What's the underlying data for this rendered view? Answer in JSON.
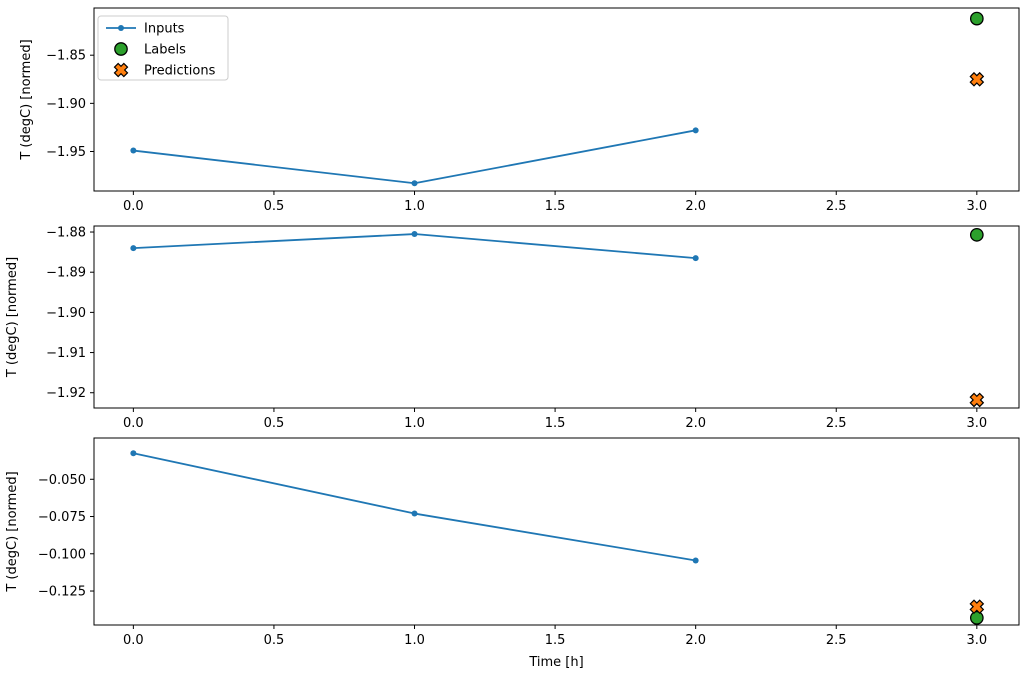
{
  "figure": {
    "background": "#ffffff",
    "xlabel": "Time [h]",
    "ylabel": "T (degC) [normed]"
  },
  "legend": {
    "border_color": "#cccccc",
    "background": "rgba(255,255,255,0.8)",
    "items": [
      {
        "label": "Inputs",
        "marker": "line-dot",
        "color": "#1f77b4"
      },
      {
        "label": "Labels",
        "marker": "circle",
        "color": "#2ca02c",
        "edge_color": "#000000"
      },
      {
        "label": "Predictions",
        "marker": "x-cross",
        "color": "#ff7f0e",
        "edge_color": "#000000"
      }
    ]
  },
  "chart_data": [
    {
      "type": "line",
      "ylabel": "T (degC) [normed]",
      "xlabel": "",
      "xlim": [
        -0.14,
        3.15
      ],
      "ylim": [
        -1.991,
        -1.801
      ],
      "grid": false,
      "legend_position": "upper-left",
      "xticks": [
        {
          "value": 0.0,
          "label": "0.0"
        },
        {
          "value": 0.5,
          "label": "0.5"
        },
        {
          "value": 1.0,
          "label": "1.0"
        },
        {
          "value": 1.5,
          "label": "1.5"
        },
        {
          "value": 2.0,
          "label": "2.0"
        },
        {
          "value": 2.5,
          "label": "2.5"
        },
        {
          "value": 3.0,
          "label": "3.0"
        }
      ],
      "yticks": [
        {
          "value": -1.85,
          "label": "−1.85"
        },
        {
          "value": -1.9,
          "label": "−1.90"
        },
        {
          "value": -1.95,
          "label": "−1.95"
        }
      ],
      "series": [
        {
          "name": "Inputs",
          "type": "line",
          "marker": "dot",
          "color": "#1f77b4",
          "x": [
            0,
            1,
            2
          ],
          "y": [
            -1.949,
            -1.983,
            -1.928
          ]
        },
        {
          "name": "Labels",
          "type": "scatter",
          "marker": "circle",
          "color": "#2ca02c",
          "edge_color": "#000000",
          "x": [
            3
          ],
          "y": [
            -1.812
          ]
        },
        {
          "name": "Predictions",
          "type": "scatter",
          "marker": "X",
          "color": "#ff7f0e",
          "edge_color": "#000000",
          "x": [
            3
          ],
          "y": [
            -1.875
          ]
        }
      ]
    },
    {
      "type": "line",
      "ylabel": "T (degC) [normed]",
      "xlabel": "",
      "xlim": [
        -0.14,
        3.15
      ],
      "ylim": [
        -1.9238,
        -1.8785
      ],
      "grid": false,
      "xticks": [
        {
          "value": 0.0,
          "label": "0.0"
        },
        {
          "value": 0.5,
          "label": "0.5"
        },
        {
          "value": 1.0,
          "label": "1.0"
        },
        {
          "value": 1.5,
          "label": "1.5"
        },
        {
          "value": 2.0,
          "label": "2.0"
        },
        {
          "value": 2.5,
          "label": "2.5"
        },
        {
          "value": 3.0,
          "label": "3.0"
        }
      ],
      "yticks": [
        {
          "value": -1.88,
          "label": "−1.88"
        },
        {
          "value": -1.89,
          "label": "−1.89"
        },
        {
          "value": -1.9,
          "label": "−1.90"
        },
        {
          "value": -1.91,
          "label": "−1.91"
        },
        {
          "value": -1.92,
          "label": "−1.92"
        }
      ],
      "series": [
        {
          "name": "Inputs",
          "type": "line",
          "marker": "dot",
          "color": "#1f77b4",
          "x": [
            0,
            1,
            2
          ],
          "y": [
            -1.884,
            -1.8805,
            -1.8865
          ]
        },
        {
          "name": "Labels",
          "type": "scatter",
          "marker": "circle",
          "color": "#2ca02c",
          "edge_color": "#000000",
          "x": [
            3
          ],
          "y": [
            -1.8807
          ]
        },
        {
          "name": "Predictions",
          "type": "scatter",
          "marker": "X",
          "color": "#ff7f0e",
          "edge_color": "#000000",
          "x": [
            3
          ],
          "y": [
            -1.9218
          ]
        }
      ]
    },
    {
      "type": "line",
      "ylabel": "T (degC) [normed]",
      "xlabel": "Time [h]",
      "xlim": [
        -0.14,
        3.15
      ],
      "ylim": [
        -0.1478,
        -0.0223
      ],
      "grid": false,
      "xticks": [
        {
          "value": 0.0,
          "label": "0.0"
        },
        {
          "value": 0.5,
          "label": "0.5"
        },
        {
          "value": 1.0,
          "label": "1.0"
        },
        {
          "value": 1.5,
          "label": "1.5"
        },
        {
          "value": 2.0,
          "label": "2.0"
        },
        {
          "value": 2.5,
          "label": "2.5"
        },
        {
          "value": 3.0,
          "label": "3.0"
        }
      ],
      "yticks": [
        {
          "value": -0.05,
          "label": "−0.050"
        },
        {
          "value": -0.075,
          "label": "−0.075"
        },
        {
          "value": -0.1,
          "label": "−0.100"
        },
        {
          "value": -0.125,
          "label": "−0.125"
        }
      ],
      "series": [
        {
          "name": "Inputs",
          "type": "line",
          "marker": "dot",
          "color": "#1f77b4",
          "x": [
            0,
            1,
            2
          ],
          "y": [
            -0.0325,
            -0.073,
            -0.1045
          ]
        },
        {
          "name": "Labels",
          "type": "scatter",
          "marker": "circle",
          "color": "#2ca02c",
          "edge_color": "#000000",
          "x": [
            3
          ],
          "y": [
            -0.143
          ]
        },
        {
          "name": "Predictions",
          "type": "scatter",
          "marker": "X",
          "color": "#ff7f0e",
          "edge_color": "#000000",
          "x": [
            3
          ],
          "y": [
            -0.1355
          ]
        }
      ]
    }
  ]
}
